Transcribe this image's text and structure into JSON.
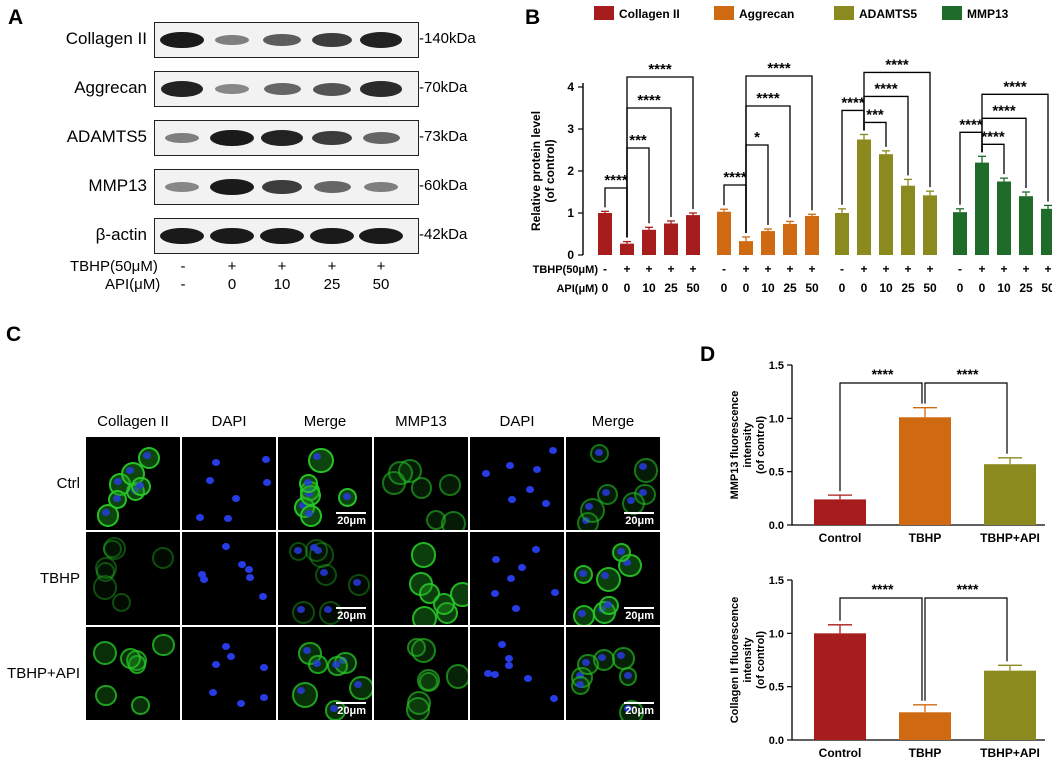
{
  "panels": {
    "a": "A",
    "b": "B",
    "c": "C",
    "d": "D"
  },
  "western_blot": {
    "proteins": [
      {
        "name": "Collagen II",
        "kda": "140kDa"
      },
      {
        "name": "Aggrecan",
        "kda": "70kDa"
      },
      {
        "name": "ADAMTS5",
        "kda": "73kDa"
      },
      {
        "name": "MMP13",
        "kda": "60kDa"
      },
      {
        "name": "β-actin",
        "kda": "42kDa"
      }
    ],
    "band_intensity": [
      [
        0.95,
        0.35,
        0.55,
        0.75,
        0.9
      ],
      [
        0.9,
        0.3,
        0.5,
        0.6,
        0.85
      ],
      [
        0.35,
        0.95,
        0.9,
        0.75,
        0.5
      ],
      [
        0.3,
        0.95,
        0.75,
        0.5,
        0.35
      ],
      [
        0.95,
        0.95,
        0.95,
        0.95,
        0.95
      ]
    ],
    "tbhp_label": "TBHP(50μM)",
    "api_label": "API(μM)",
    "tbhp_values": [
      "-",
      "+",
      "+",
      "+",
      "+"
    ],
    "api_values": [
      "-",
      "0",
      "10",
      "25",
      "50"
    ]
  },
  "colors": {
    "collagen": "#a71c1c",
    "aggrecan": "#d06a12",
    "adamts5": "#8a8a1e",
    "mmp13": "#1e6b2a"
  },
  "chart_data": [
    {
      "type": "bar",
      "ylabel": "Relative protein level\n(of control)",
      "ylim": [
        0,
        4
      ],
      "yticks": [
        0,
        1,
        2,
        3,
        4
      ],
      "legend": [
        "Collagen II",
        "Aggrecan",
        "ADAMTS5",
        "MMP13"
      ],
      "legend_placement": "top",
      "row_labels": [
        "TBHP(50μM)",
        "API(μM)"
      ],
      "tbhp": [
        "-",
        "+",
        "+",
        "+",
        "+"
      ],
      "api": [
        "0",
        "0",
        "10",
        "25",
        "50"
      ],
      "series": [
        {
          "name": "Collagen II",
          "values": [
            1.0,
            0.27,
            0.6,
            0.75,
            0.95
          ],
          "errors": [
            0.04,
            0.05,
            0.06,
            0.06,
            0.05
          ]
        },
        {
          "name": "Aggrecan",
          "values": [
            1.03,
            0.33,
            0.57,
            0.74,
            0.93
          ],
          "errors": [
            0.06,
            0.1,
            0.05,
            0.06,
            0.04
          ]
        },
        {
          "name": "ADAMTS5",
          "values": [
            1.0,
            2.75,
            2.4,
            1.65,
            1.42
          ],
          "errors": [
            0.1,
            0.12,
            0.08,
            0.15,
            0.1
          ]
        },
        {
          "name": "MMP13",
          "values": [
            1.02,
            2.2,
            1.75,
            1.4,
            1.1
          ],
          "errors": [
            0.08,
            0.15,
            0.08,
            0.1,
            0.08
          ]
        }
      ],
      "significance": [
        {
          "series": 0,
          "from": 0,
          "to": 1,
          "label": "****"
        },
        {
          "series": 0,
          "from": 1,
          "to": 2,
          "label": "***"
        },
        {
          "series": 0,
          "from": 1,
          "to": 3,
          "label": "****"
        },
        {
          "series": 0,
          "from": 1,
          "to": 4,
          "label": "****"
        },
        {
          "series": 1,
          "from": 0,
          "to": 1,
          "label": "****"
        },
        {
          "series": 1,
          "from": 1,
          "to": 2,
          "label": "*"
        },
        {
          "series": 1,
          "from": 1,
          "to": 3,
          "label": "****"
        },
        {
          "series": 1,
          "from": 1,
          "to": 4,
          "label": "****"
        },
        {
          "series": 2,
          "from": 0,
          "to": 1,
          "label": "****"
        },
        {
          "series": 2,
          "from": 1,
          "to": 2,
          "label": "***"
        },
        {
          "series": 2,
          "from": 1,
          "to": 3,
          "label": "****"
        },
        {
          "series": 2,
          "from": 1,
          "to": 4,
          "label": "****"
        },
        {
          "series": 3,
          "from": 0,
          "to": 1,
          "label": "****"
        },
        {
          "series": 3,
          "from": 1,
          "to": 2,
          "label": "****"
        },
        {
          "series": 3,
          "from": 1,
          "to": 3,
          "label": "****"
        },
        {
          "series": 3,
          "from": 1,
          "to": 4,
          "label": "****"
        }
      ]
    },
    {
      "type": "bar",
      "ylabel": "MMP13 fluorescence\nintensity\n(of control)",
      "categories": [
        "Control",
        "TBHP",
        "TBHP+API"
      ],
      "values": [
        0.24,
        1.01,
        0.57
      ],
      "errors": [
        0.04,
        0.09,
        0.06
      ],
      "ylim": [
        0,
        1.5
      ],
      "yticks": [
        "0.0",
        "0.5",
        "1.0",
        "1.5"
      ],
      "significance": [
        {
          "from": 0,
          "to": 1,
          "label": "****"
        },
        {
          "from": 1,
          "to": 2,
          "label": "****"
        }
      ]
    },
    {
      "type": "bar",
      "ylabel": "Collagen II fluorescence\nintensity\n(of control)",
      "categories": [
        "Control",
        "TBHP",
        "TBHP+API"
      ],
      "values": [
        1.0,
        0.26,
        0.65
      ],
      "errors": [
        0.08,
        0.07,
        0.05
      ],
      "ylim": [
        0,
        1.5
      ],
      "yticks": [
        "0.0",
        "0.5",
        "1.0",
        "1.5"
      ],
      "significance": [
        {
          "from": 0,
          "to": 1,
          "label": "****"
        },
        {
          "from": 1,
          "to": 2,
          "label": "****"
        }
      ]
    }
  ],
  "fluorescence": {
    "columns": [
      "Collagen II",
      "DAPI",
      "Merge",
      "MMP13",
      "DAPI",
      "Merge"
    ],
    "rows": [
      "Ctrl",
      "TBHP",
      "TBHP+API"
    ],
    "scale_label": "20μm"
  }
}
